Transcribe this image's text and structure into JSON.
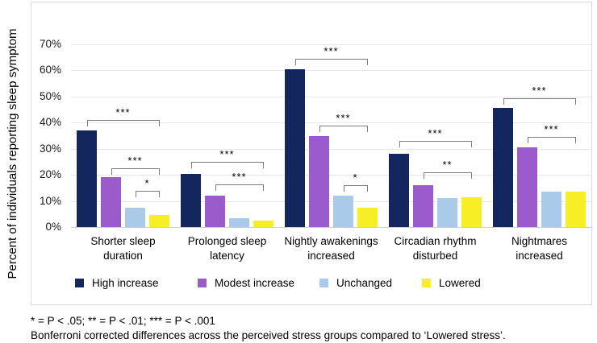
{
  "chart_data": {
    "type": "bar",
    "title": "",
    "xlabel": "",
    "ylabel": "Percent of individuals reporting sleep symptom",
    "ylim": [
      0,
      70
    ],
    "ytick_values": [
      0,
      10,
      20,
      30,
      40,
      50,
      60,
      70
    ],
    "ytick_labels": [
      "0%",
      "10%",
      "20%",
      "30%",
      "40%",
      "50%",
      "60%",
      "70%"
    ],
    "grid": true,
    "legend_position": "bottom",
    "categories": [
      "Shorter sleep duration",
      "Prolonged sleep latency",
      "Nightly awakenings increased",
      "Circadian rhythm disturbed",
      "Nightmares increased"
    ],
    "series": [
      {
        "name": "High increase",
        "color": "#14265e",
        "values": [
          37,
          20.5,
          60.5,
          28,
          45.5
        ]
      },
      {
        "name": "Modest increase",
        "color": "#9c5bcd",
        "values": [
          19,
          12,
          35,
          16,
          30.5
        ]
      },
      {
        "name": "Unchanged",
        "color": "#a9cbe9",
        "values": [
          7.5,
          3.5,
          12,
          11,
          13.5
        ]
      },
      {
        "name": "Lowered",
        "color": "#f8ee25",
        "values": [
          4.5,
          2.5,
          7.5,
          11.5,
          13.5
        ]
      }
    ],
    "significance_brackets": [
      {
        "category": 0,
        "from_series": 0,
        "to_series": 3,
        "label": "***",
        "y": 41
      },
      {
        "category": 0,
        "from_series": 1,
        "to_series": 3,
        "label": "***",
        "y": 22.5
      },
      {
        "category": 0,
        "from_series": 2,
        "to_series": 3,
        "label": "*",
        "y": 14
      },
      {
        "category": 1,
        "from_series": 0,
        "to_series": 3,
        "label": "***",
        "y": 25
      },
      {
        "category": 1,
        "from_series": 1,
        "to_series": 3,
        "label": "***",
        "y": 16.5
      },
      {
        "category": 2,
        "from_series": 0,
        "to_series": 3,
        "label": "***",
        "y": 64.5
      },
      {
        "category": 2,
        "from_series": 1,
        "to_series": 3,
        "label": "***",
        "y": 39
      },
      {
        "category": 2,
        "from_series": 2,
        "to_series": 3,
        "label": "*",
        "y": 16
      },
      {
        "category": 3,
        "from_series": 0,
        "to_series": 3,
        "label": "***",
        "y": 33
      },
      {
        "category": 3,
        "from_series": 1,
        "to_series": 3,
        "label": "**",
        "y": 21
      },
      {
        "category": 4,
        "from_series": 0,
        "to_series": 3,
        "label": "***",
        "y": 49.5
      },
      {
        "category": 4,
        "from_series": 1,
        "to_series": 3,
        "label": "***",
        "y": 34.5
      }
    ]
  },
  "footnotes": {
    "line1": "* = P < .05; ** = P < .01; *** = P < .001",
    "line2": "Bonferroni corrected differences across the perceived stress groups compared to ‘Lowered stress’."
  }
}
